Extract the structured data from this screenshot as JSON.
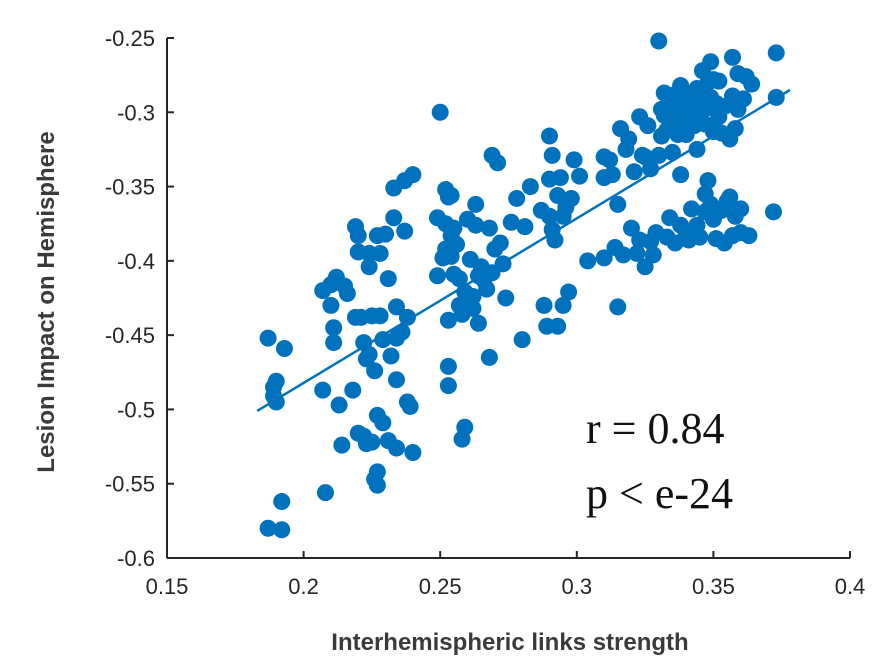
{
  "chart_data": {
    "type": "scatter",
    "xlabel": "Interhemispheric links strength",
    "ylabel": "Lesion Impact on Hemisphere",
    "xlim": [
      0.15,
      0.4
    ],
    "ylim": [
      -0.6,
      -0.25
    ],
    "x_ticks": [
      0.15,
      0.2,
      0.25,
      0.3,
      0.35,
      0.4
    ],
    "x_tick_labels": [
      "0.15",
      "0.2",
      "0.25",
      "0.3",
      "0.35",
      "0.4"
    ],
    "y_ticks": [
      -0.6,
      -0.55,
      -0.5,
      -0.45,
      -0.4,
      -0.35,
      -0.3,
      -0.25
    ],
    "y_tick_labels": [
      "-0.6",
      "-0.55",
      "-0.5",
      "-0.45",
      "-0.4",
      "-0.35",
      "-0.3",
      "-0.25"
    ],
    "grid": false,
    "marker_color": "#0072BD",
    "fit_line": {
      "x": [
        0.183,
        0.378
      ],
      "y": [
        -0.501,
        -0.285
      ]
    },
    "annotations": [
      "r = 0.84",
      "p < e-24"
    ],
    "points": [
      [
        0.187,
        -0.452
      ],
      [
        0.187,
        -0.58
      ],
      [
        0.189,
        -0.485
      ],
      [
        0.189,
        -0.491
      ],
      [
        0.19,
        -0.481
      ],
      [
        0.19,
        -0.495
      ],
      [
        0.192,
        -0.581
      ],
      [
        0.192,
        -0.562
      ],
      [
        0.193,
        -0.459
      ],
      [
        0.207,
        -0.42
      ],
      [
        0.207,
        -0.487
      ],
      [
        0.208,
        -0.556
      ],
      [
        0.21,
        -0.416
      ],
      [
        0.21,
        -0.43
      ],
      [
        0.211,
        -0.445
      ],
      [
        0.211,
        -0.455
      ],
      [
        0.212,
        -0.411
      ],
      [
        0.213,
        -0.497
      ],
      [
        0.214,
        -0.524
      ],
      [
        0.215,
        -0.417
      ],
      [
        0.216,
        -0.422
      ],
      [
        0.218,
        -0.487
      ],
      [
        0.219,
        -0.438
      ],
      [
        0.219,
        -0.377
      ],
      [
        0.22,
        -0.383
      ],
      [
        0.22,
        -0.394
      ],
      [
        0.22,
        -0.516
      ],
      [
        0.221,
        -0.438
      ],
      [
        0.222,
        -0.518
      ],
      [
        0.222,
        -0.455
      ],
      [
        0.223,
        -0.523
      ],
      [
        0.223,
        -0.466
      ],
      [
        0.224,
        -0.404
      ],
      [
        0.224,
        -0.395
      ],
      [
        0.224,
        -0.463
      ],
      [
        0.225,
        -0.522
      ],
      [
        0.225,
        -0.437
      ],
      [
        0.226,
        -0.547
      ],
      [
        0.226,
        -0.474
      ],
      [
        0.227,
        -0.383
      ],
      [
        0.227,
        -0.504
      ],
      [
        0.227,
        -0.542
      ],
      [
        0.227,
        -0.551
      ],
      [
        0.228,
        -0.395
      ],
      [
        0.228,
        -0.437
      ],
      [
        0.229,
        -0.453
      ],
      [
        0.229,
        -0.509
      ],
      [
        0.23,
        -0.382
      ],
      [
        0.231,
        -0.412
      ],
      [
        0.231,
        -0.521
      ],
      [
        0.232,
        -0.464
      ],
      [
        0.233,
        -0.371
      ],
      [
        0.233,
        -0.351
      ],
      [
        0.234,
        -0.452
      ],
      [
        0.234,
        -0.431
      ],
      [
        0.234,
        -0.48
      ],
      [
        0.234,
        -0.526
      ],
      [
        0.236,
        -0.448
      ],
      [
        0.237,
        -0.346
      ],
      [
        0.237,
        -0.38
      ],
      [
        0.238,
        -0.495
      ],
      [
        0.238,
        -0.438
      ],
      [
        0.239,
        -0.498
      ],
      [
        0.24,
        -0.342
      ],
      [
        0.24,
        -0.529
      ],
      [
        0.249,
        -0.371
      ],
      [
        0.249,
        -0.41
      ],
      [
        0.25,
        -0.3
      ],
      [
        0.251,
        -0.398
      ],
      [
        0.252,
        -0.352
      ],
      [
        0.252,
        -0.375
      ],
      [
        0.252,
        -0.392
      ],
      [
        0.253,
        -0.357
      ],
      [
        0.253,
        -0.44
      ],
      [
        0.253,
        -0.471
      ],
      [
        0.253,
        -0.484
      ],
      [
        0.254,
        -0.356
      ],
      [
        0.254,
        -0.383
      ],
      [
        0.254,
        -0.397
      ],
      [
        0.255,
        -0.378
      ],
      [
        0.255,
        -0.409
      ],
      [
        0.256,
        -0.389
      ],
      [
        0.257,
        -0.412
      ],
      [
        0.257,
        -0.43
      ],
      [
        0.258,
        -0.436
      ],
      [
        0.258,
        -0.52
      ],
      [
        0.259,
        -0.421
      ],
      [
        0.259,
        -0.512
      ],
      [
        0.26,
        -0.372
      ],
      [
        0.261,
        -0.399
      ],
      [
        0.262,
        -0.424
      ],
      [
        0.262,
        -0.432
      ],
      [
        0.263,
        -0.376
      ],
      [
        0.263,
        -0.362
      ],
      [
        0.264,
        -0.442
      ],
      [
        0.264,
        -0.41
      ],
      [
        0.265,
        -0.404
      ],
      [
        0.266,
        -0.413
      ],
      [
        0.267,
        -0.419
      ],
      [
        0.268,
        -0.378
      ],
      [
        0.268,
        -0.465
      ],
      [
        0.269,
        -0.329
      ],
      [
        0.269,
        -0.408
      ],
      [
        0.27,
        -0.392
      ],
      [
        0.271,
        -0.334
      ],
      [
        0.272,
        -0.388
      ],
      [
        0.273,
        -0.402
      ],
      [
        0.274,
        -0.425
      ],
      [
        0.276,
        -0.374
      ],
      [
        0.278,
        -0.358
      ],
      [
        0.28,
        -0.453
      ],
      [
        0.281,
        -0.377
      ],
      [
        0.283,
        -0.35
      ],
      [
        0.287,
        -0.366
      ],
      [
        0.288,
        -0.43
      ],
      [
        0.289,
        -0.444
      ],
      [
        0.29,
        -0.37
      ],
      [
        0.29,
        -0.316
      ],
      [
        0.29,
        -0.345
      ],
      [
        0.291,
        -0.329
      ],
      [
        0.291,
        -0.379
      ],
      [
        0.292,
        -0.386
      ],
      [
        0.293,
        -0.356
      ],
      [
        0.293,
        -0.444
      ],
      [
        0.294,
        -0.344
      ],
      [
        0.295,
        -0.37
      ],
      [
        0.295,
        -0.43
      ],
      [
        0.296,
        -0.364
      ],
      [
        0.297,
        -0.421
      ],
      [
        0.298,
        -0.358
      ],
      [
        0.299,
        -0.332
      ],
      [
        0.301,
        -0.343
      ],
      [
        0.304,
        -0.4
      ],
      [
        0.31,
        -0.33
      ],
      [
        0.31,
        -0.344
      ],
      [
        0.31,
        -0.398
      ],
      [
        0.312,
        -0.332
      ],
      [
        0.313,
        -0.342
      ],
      [
        0.314,
        -0.391
      ],
      [
        0.315,
        -0.362
      ],
      [
        0.315,
        -0.431
      ],
      [
        0.316,
        -0.311
      ],
      [
        0.317,
        -0.396
      ],
      [
        0.318,
        -0.325
      ],
      [
        0.319,
        -0.318
      ],
      [
        0.32,
        -0.378
      ],
      [
        0.321,
        -0.34
      ],
      [
        0.322,
        -0.395
      ],
      [
        0.323,
        -0.386
      ],
      [
        0.323,
        -0.303
      ],
      [
        0.324,
        -0.329
      ],
      [
        0.325,
        -0.404
      ],
      [
        0.325,
        -0.33
      ],
      [
        0.326,
        -0.309
      ],
      [
        0.327,
        -0.338
      ],
      [
        0.327,
        -0.387
      ],
      [
        0.328,
        -0.396
      ],
      [
        0.329,
        -0.381
      ],
      [
        0.33,
        -0.252
      ],
      [
        0.33,
        -0.329
      ],
      [
        0.331,
        -0.298
      ],
      [
        0.331,
        -0.316
      ],
      [
        0.332,
        -0.287
      ],
      [
        0.332,
        -0.302
      ],
      [
        0.333,
        -0.312
      ],
      [
        0.333,
        -0.384
      ],
      [
        0.334,
        -0.371
      ],
      [
        0.334,
        -0.293
      ],
      [
        0.335,
        -0.308
      ],
      [
        0.335,
        -0.327
      ],
      [
        0.336,
        -0.288
      ],
      [
        0.336,
        -0.3
      ],
      [
        0.336,
        -0.388
      ],
      [
        0.337,
        -0.315
      ],
      [
        0.337,
        -0.297
      ],
      [
        0.338,
        -0.376
      ],
      [
        0.338,
        -0.342
      ],
      [
        0.338,
        -0.282
      ],
      [
        0.339,
        -0.306
      ],
      [
        0.339,
        -0.289
      ],
      [
        0.34,
        -0.381
      ],
      [
        0.34,
        -0.315
      ],
      [
        0.341,
        -0.296
      ],
      [
        0.341,
        -0.386
      ],
      [
        0.341,
        -0.305
      ],
      [
        0.342,
        -0.299
      ],
      [
        0.342,
        -0.365
      ],
      [
        0.343,
        -0.293
      ],
      [
        0.343,
        -0.309
      ],
      [
        0.344,
        -0.284
      ],
      [
        0.344,
        -0.376
      ],
      [
        0.344,
        -0.325
      ],
      [
        0.345,
        -0.29
      ],
      [
        0.345,
        -0.384
      ],
      [
        0.345,
        -0.302
      ],
      [
        0.346,
        -0.294
      ],
      [
        0.346,
        -0.272
      ],
      [
        0.347,
        -0.355
      ],
      [
        0.347,
        -0.367
      ],
      [
        0.347,
        -0.308
      ],
      [
        0.348,
        -0.28
      ],
      [
        0.348,
        -0.297
      ],
      [
        0.348,
        -0.346
      ],
      [
        0.349,
        -0.362
      ],
      [
        0.349,
        -0.29
      ],
      [
        0.349,
        -0.266
      ],
      [
        0.35,
        -0.372
      ],
      [
        0.35,
        -0.313
      ],
      [
        0.35,
        -0.278
      ],
      [
        0.351,
        -0.385
      ],
      [
        0.351,
        -0.296
      ],
      [
        0.351,
        -0.294
      ],
      [
        0.352,
        -0.279
      ],
      [
        0.352,
        -0.303
      ],
      [
        0.353,
        -0.366
      ],
      [
        0.353,
        -0.314
      ],
      [
        0.354,
        -0.388
      ],
      [
        0.354,
        -0.296
      ],
      [
        0.355,
        -0.36
      ],
      [
        0.356,
        -0.357
      ],
      [
        0.356,
        -0.318
      ],
      [
        0.357,
        -0.383
      ],
      [
        0.357,
        -0.289
      ],
      [
        0.357,
        -0.263
      ],
      [
        0.358,
        -0.37
      ],
      [
        0.358,
        -0.311
      ],
      [
        0.359,
        -0.298
      ],
      [
        0.359,
        -0.274
      ],
      [
        0.36,
        -0.365
      ],
      [
        0.36,
        -0.381
      ],
      [
        0.361,
        -0.291
      ],
      [
        0.362,
        -0.276
      ],
      [
        0.363,
        -0.383
      ],
      [
        0.364,
        -0.281
      ],
      [
        0.372,
        -0.367
      ],
      [
        0.373,
        -0.26
      ],
      [
        0.373,
        -0.29
      ]
    ]
  }
}
